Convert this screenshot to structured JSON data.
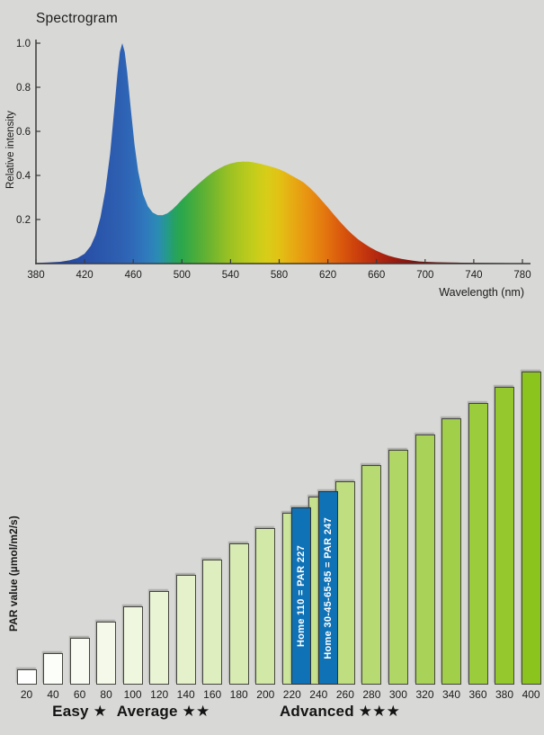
{
  "page": {
    "background": "#d8d8d6"
  },
  "chart_data": [
    {
      "type": "area",
      "title": "Spectrogram",
      "xlabel": "Wavelength (nm)",
      "ylabel": "Relative intensity",
      "xlim": [
        380,
        780
      ],
      "ylim": [
        0,
        1.0
      ],
      "x_ticks": [
        380,
        420,
        460,
        500,
        540,
        580,
        620,
        660,
        700,
        740,
        780
      ],
      "y_ticks": [
        0.2,
        0.4,
        0.6,
        0.8,
        1.0
      ],
      "grid": "off",
      "legend": "none",
      "axis_color": "#3a3a3a",
      "series": [
        {
          "name": "relative spectral intensity",
          "points": [
            [
              380,
              0.003
            ],
            [
              390,
              0.005
            ],
            [
              400,
              0.008
            ],
            [
              408,
              0.015
            ],
            [
              414,
              0.025
            ],
            [
              420,
              0.045
            ],
            [
              425,
              0.08
            ],
            [
              429,
              0.13
            ],
            [
              433,
              0.21
            ],
            [
              437,
              0.33
            ],
            [
              441,
              0.5
            ],
            [
              444,
              0.68
            ],
            [
              447,
              0.86
            ],
            [
              449,
              0.96
            ],
            [
              451,
              1.0
            ],
            [
              453,
              0.96
            ],
            [
              455,
              0.87
            ],
            [
              458,
              0.7
            ],
            [
              461,
              0.54
            ],
            [
              464,
              0.42
            ],
            [
              468,
              0.315
            ],
            [
              472,
              0.26
            ],
            [
              476,
              0.232
            ],
            [
              480,
              0.22
            ],
            [
              484,
              0.219
            ],
            [
              488,
              0.228
            ],
            [
              492,
              0.245
            ],
            [
              496,
              0.266
            ],
            [
              500,
              0.29
            ],
            [
              505,
              0.318
            ],
            [
              510,
              0.344
            ],
            [
              515,
              0.368
            ],
            [
              520,
              0.392
            ],
            [
              525,
              0.413
            ],
            [
              530,
              0.43
            ],
            [
              535,
              0.444
            ],
            [
              540,
              0.454
            ],
            [
              545,
              0.46
            ],
            [
              550,
              0.463
            ],
            [
              555,
              0.462
            ],
            [
              560,
              0.458
            ],
            [
              565,
              0.452
            ],
            [
              570,
              0.445
            ],
            [
              575,
              0.437
            ],
            [
              580,
              0.428
            ],
            [
              585,
              0.415
            ],
            [
              590,
              0.4
            ],
            [
              595,
              0.385
            ],
            [
              600,
              0.368
            ],
            [
              605,
              0.345
            ],
            [
              610,
              0.318
            ],
            [
              615,
              0.287
            ],
            [
              620,
              0.255
            ],
            [
              625,
              0.222
            ],
            [
              630,
              0.19
            ],
            [
              635,
              0.16
            ],
            [
              640,
              0.133
            ],
            [
              645,
              0.11
            ],
            [
              650,
              0.09
            ],
            [
              655,
              0.073
            ],
            [
              660,
              0.058
            ],
            [
              665,
              0.046
            ],
            [
              670,
              0.036
            ],
            [
              675,
              0.028
            ],
            [
              680,
              0.022
            ],
            [
              685,
              0.017
            ],
            [
              690,
              0.013
            ],
            [
              695,
              0.01
            ],
            [
              700,
              0.008
            ],
            [
              710,
              0.006
            ],
            [
              720,
              0.005
            ],
            [
              730,
              0.004
            ],
            [
              740,
              0.0035
            ],
            [
              750,
              0.003
            ],
            [
              760,
              0.0025
            ],
            [
              770,
              0.002
            ],
            [
              780,
              0.002
            ]
          ]
        }
      ],
      "gradient_stops": [
        [
          0.0,
          "#203e99"
        ],
        [
          0.06,
          "#24489f"
        ],
        [
          0.1,
          "#2850a6"
        ],
        [
          0.14,
          "#2b58ac"
        ],
        [
          0.175,
          "#2e60b2"
        ],
        [
          0.2,
          "#2f6ab8"
        ],
        [
          0.225,
          "#2f79bd"
        ],
        [
          0.25,
          "#2b8bb4"
        ],
        [
          0.27,
          "#259a8a"
        ],
        [
          0.285,
          "#27a25f"
        ],
        [
          0.3,
          "#2ca74b"
        ],
        [
          0.33,
          "#4cad3a"
        ],
        [
          0.36,
          "#6fb52e"
        ],
        [
          0.39,
          "#93bf25"
        ],
        [
          0.42,
          "#aec71f"
        ],
        [
          0.45,
          "#c6cd1b"
        ],
        [
          0.475,
          "#d8cd18"
        ],
        [
          0.5,
          "#e2c115"
        ],
        [
          0.53,
          "#e7a913"
        ],
        [
          0.56,
          "#e89211"
        ],
        [
          0.59,
          "#e47a0f"
        ],
        [
          0.62,
          "#dc5f0d"
        ],
        [
          0.65,
          "#d0470c"
        ],
        [
          0.68,
          "#c1330e"
        ],
        [
          0.71,
          "#ad2410"
        ],
        [
          0.74,
          "#971b10"
        ],
        [
          0.77,
          "#83150e"
        ],
        [
          0.8,
          "#72120c"
        ],
        [
          0.85,
          "#5e0f0a"
        ],
        [
          0.9,
          "#520e09"
        ],
        [
          1.0,
          "#450c07"
        ]
      ]
    },
    {
      "type": "bar",
      "title": "",
      "xlabel": "",
      "ylabel": "PAR value (µmol/m2/s)",
      "grid": "off",
      "legend": "none",
      "categories": [
        20,
        40,
        60,
        80,
        100,
        120,
        140,
        160,
        180,
        200,
        220,
        240,
        260,
        280,
        300,
        320,
        340,
        360,
        380,
        400
      ],
      "values": [
        20,
        40,
        60,
        80,
        100,
        120,
        140,
        160,
        180,
        200,
        220,
        240,
        260,
        280,
        300,
        320,
        340,
        360,
        380,
        400
      ],
      "bar_color_start": "#ffffff",
      "bar_color_end": "#8cc41e",
      "bar_outline": "#45453f",
      "highlight_color": "#0f72b6",
      "highlight_bars": [
        {
          "value": 227,
          "label": "Home 110 = PAR 227"
        },
        {
          "value": 247,
          "label": "Home 30-45-65-85 = PAR 247"
        }
      ],
      "group_labels": [
        {
          "label": "Easy ★",
          "center_value": 60
        },
        {
          "label": "Average ★★",
          "center_value": 123
        },
        {
          "label": "Advanced ★★★",
          "center_value": 256
        }
      ]
    }
  ]
}
